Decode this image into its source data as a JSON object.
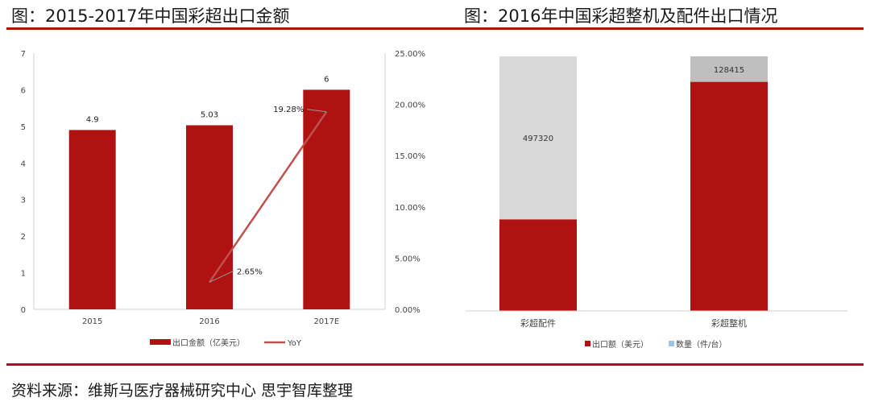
{
  "left_title": "图：2015-2017年中国彩超出口金额",
  "right_title": "图：2016年中国彩超整机及配件出口情况",
  "source": "资料来源：维斯马医疗器械研究中心  思宇智库整理",
  "colors": {
    "rule": "#b01212",
    "bar": "#b01212",
    "line": "#c0504d",
    "gray": "#d9d9d9",
    "gray2": "#bfbfbf",
    "blue_marker": "#9dc3e6"
  },
  "chart_data": [
    {
      "type": "bar",
      "categories": [
        "2015",
        "2016",
        "2017E"
      ],
      "series": [
        {
          "name": "出口金额（亿美元）",
          "type": "bar",
          "axis": "left",
          "values": [
            4.9,
            5.03,
            6
          ],
          "labels": [
            "4.9",
            "5.03",
            "6"
          ]
        },
        {
          "name": "YoY",
          "type": "line",
          "axis": "right",
          "x": [
            "2016",
            "2017E"
          ],
          "values": [
            2.65,
            19.28
          ],
          "labels": [
            "2.65%",
            "19.28%"
          ]
        }
      ],
      "y_left": {
        "range": [
          0,
          7
        ],
        "ticks": [
          "0",
          "1",
          "2",
          "3",
          "4",
          "5",
          "6",
          "7"
        ]
      },
      "y_right": {
        "range": [
          0,
          25
        ],
        "ticks": [
          "0.00%",
          "5.00%",
          "10.00%",
          "15.00%",
          "20.00%",
          "25.00%"
        ]
      },
      "grid": false,
      "legend": "bottom"
    },
    {
      "type": "bar",
      "stacked": true,
      "normalized": true,
      "categories": [
        "彩超配件",
        "彩超整机"
      ],
      "series": [
        {
          "name": "出口额（美元）",
          "values": [
            null,
            null
          ],
          "shares": [
            0.36,
            0.9
          ],
          "labels": [
            "",
            ""
          ]
        },
        {
          "name": "数量（件/台）",
          "values": [
            497320,
            128415
          ],
          "shares": [
            0.64,
            0.1
          ],
          "labels": [
            "497320",
            "128415"
          ]
        }
      ],
      "grid": false,
      "legend": "bottom"
    }
  ]
}
